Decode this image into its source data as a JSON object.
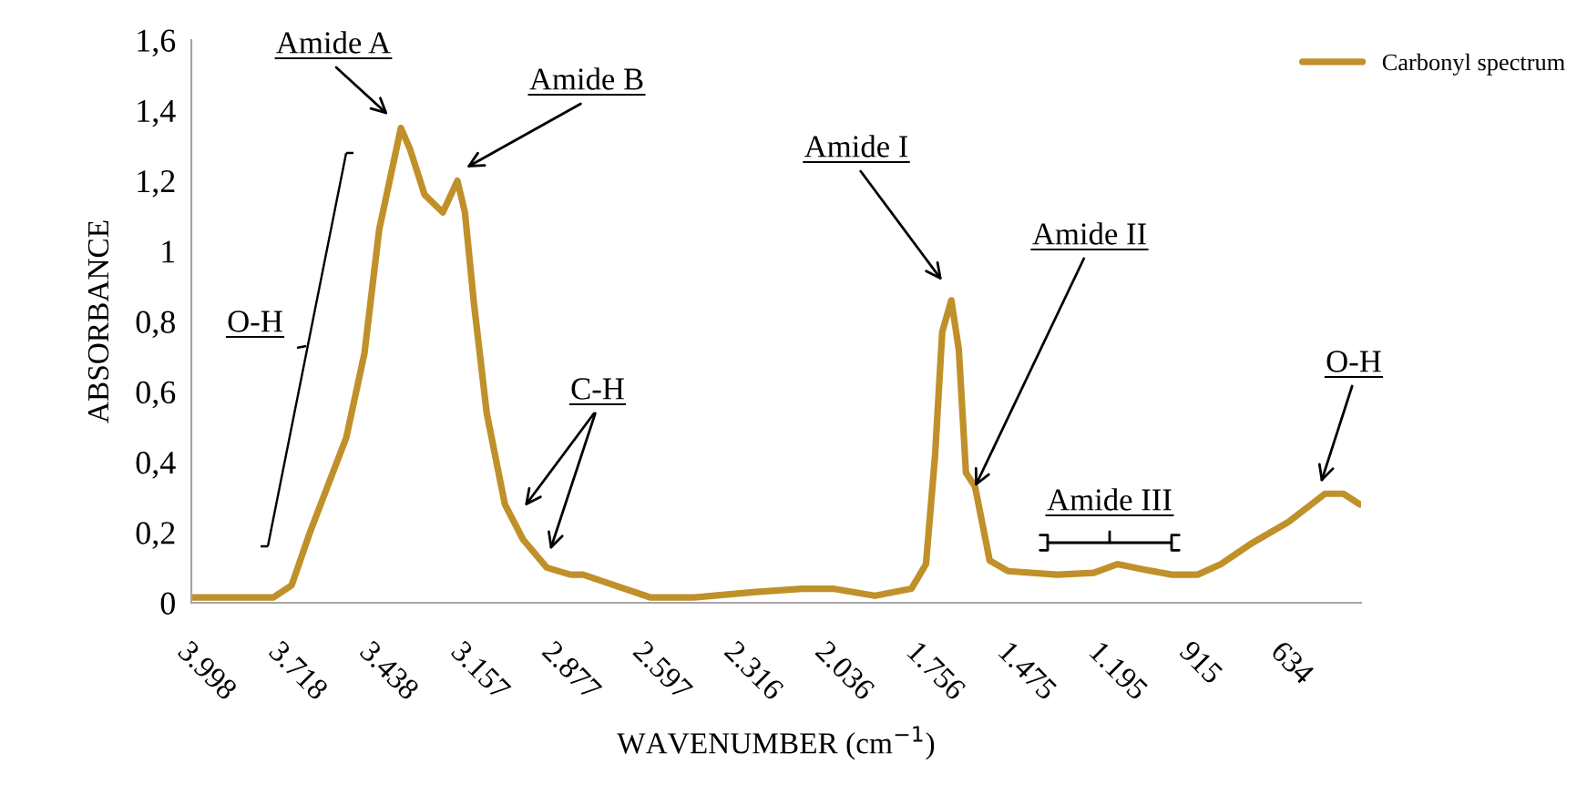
{
  "chart_data": {
    "type": "line",
    "xlabel": "WAVENUMBER (cm$^{−1}$)",
    "ylabel": "ABSORBANCE",
    "xlim": [
      3998,
      398
    ],
    "ylim": [
      0,
      1.6
    ],
    "xticks": [
      {
        "value": 3998,
        "label": "3.998"
      },
      {
        "value": 3718,
        "label": "3.718"
      },
      {
        "value": 3438,
        "label": "3.438"
      },
      {
        "value": 3157,
        "label": "3.157"
      },
      {
        "value": 2877,
        "label": "2.877"
      },
      {
        "value": 2597,
        "label": "2.597"
      },
      {
        "value": 2316,
        "label": "2.316"
      },
      {
        "value": 2036,
        "label": "2.036"
      },
      {
        "value": 1756,
        "label": "1.756"
      },
      {
        "value": 1475,
        "label": "1.475"
      },
      {
        "value": 1195,
        "label": "1.195"
      },
      915,
      634
    ],
    "yticks": [
      0,
      {
        "value": 0.2,
        "label": "0,2"
      },
      {
        "value": 0.4,
        "label": "0,4"
      },
      {
        "value": 0.6,
        "label": "0,6"
      },
      {
        "value": 0.8,
        "label": "0,8"
      },
      1,
      {
        "value": 1.2,
        "label": "1,2"
      },
      {
        "value": 1.4,
        "label": "1,4"
      },
      {
        "value": 1.6,
        "label": "1,6"
      }
    ],
    "grid": false,
    "legend": "top right",
    "marker": "none",
    "line_style": "solid",
    "series": [
      {
        "name": "Carbonyl spectrum",
        "color": "#c0902a",
        "x": [
          3998,
          3746,
          3689,
          3633,
          3521,
          3465,
          3420,
          3353,
          3325,
          3280,
          3224,
          3179,
          3156,
          3128,
          3089,
          3033,
          2977,
          2904,
          2831,
          2792,
          2697,
          2584,
          2483,
          2455,
          2270,
          2119,
          2023,
          1894,
          1782,
          1737,
          1709,
          1687,
          1659,
          1636,
          1614,
          1586,
          1541,
          1485,
          1333,
          1221,
          1148,
          1070,
          980,
          901,
          829,
          733,
          621,
          509,
          452,
          402
        ],
        "values": [
          0.015,
          0.015,
          0.05,
          0.2,
          0.47,
          0.71,
          1.06,
          1.35,
          1.29,
          1.16,
          1.11,
          1.2,
          1.11,
          0.85,
          0.54,
          0.28,
          0.18,
          0.1,
          0.08,
          0.08,
          0.05,
          0.015,
          0.015,
          0.015,
          0.03,
          0.04,
          0.04,
          0.02,
          0.04,
          0.11,
          0.42,
          0.77,
          0.86,
          0.72,
          0.37,
          0.33,
          0.12,
          0.09,
          0.08,
          0.085,
          0.11,
          0.095,
          0.08,
          0.08,
          0.11,
          0.17,
          0.23,
          0.31,
          0.31,
          0.28
        ]
      }
    ],
    "annotations": [
      "Amide A",
      "Amide B",
      "O-H",
      "C-H",
      "Amide I",
      {
        "text": "Amide II",
        "x": 1586,
        "y": 0.33
      },
      "Amide III",
      "O-H"
    ]
  }
}
